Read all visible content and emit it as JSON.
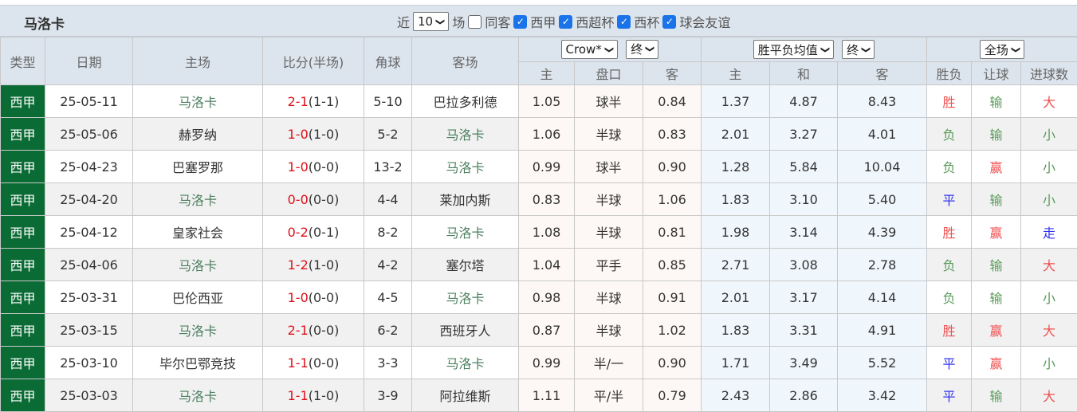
{
  "header": {
    "team": "马洛卡",
    "recent_label": "近",
    "recent_count": "10",
    "matches_label": "场",
    "same_home_label": "同客",
    "filters": [
      "西甲",
      "西超杯",
      "西杯",
      "球会友谊"
    ]
  },
  "columns": {
    "type": "类型",
    "date": "日期",
    "home": "主场",
    "score": "比分(半场)",
    "corners": "角球",
    "away": "客场",
    "handicap_company": "Crow*",
    "handicap_mode": "终",
    "odds_type": "胜平负均值",
    "odds_mode": "终",
    "result_scope": "全场",
    "ah_home": "主",
    "ah_line": "盘口",
    "ah_away": "客",
    "eu_home": "主",
    "eu_draw": "和",
    "eu_away": "客",
    "wdl": "胜负",
    "hcp_result": "让球",
    "goals": "进球数"
  },
  "rows": [
    {
      "league": "西甲",
      "date": "25-05-11",
      "home": "马洛卡",
      "ft": "2-1",
      "ht": "(1-1)",
      "corners": "5-10",
      "away": "巴拉多利德",
      "ah_h": "1.05",
      "line": "球半",
      "ah_a": "0.84",
      "eu_h": "1.37",
      "eu_d": "4.87",
      "eu_a": "8.43",
      "wdl": "胜",
      "hcp": "输",
      "ou": "大",
      "home_is_team": true
    },
    {
      "league": "西甲",
      "date": "25-05-06",
      "home": "赫罗纳",
      "ft": "1-0",
      "ht": "(1-0)",
      "corners": "5-2",
      "away": "马洛卡",
      "ah_h": "1.06",
      "line": "半球",
      "ah_a": "0.83",
      "eu_h": "2.01",
      "eu_d": "3.27",
      "eu_a": "4.01",
      "wdl": "负",
      "hcp": "输",
      "ou": "小",
      "home_is_team": false
    },
    {
      "league": "西甲",
      "date": "25-04-23",
      "home": "巴塞罗那",
      "ft": "1-0",
      "ht": "(0-0)",
      "corners": "13-2",
      "away": "马洛卡",
      "ah_h": "0.99",
      "line": "球半",
      "ah_a": "0.90",
      "eu_h": "1.28",
      "eu_d": "5.84",
      "eu_a": "10.04",
      "wdl": "负",
      "hcp": "赢",
      "ou": "小",
      "home_is_team": false
    },
    {
      "league": "西甲",
      "date": "25-04-20",
      "home": "马洛卡",
      "ft": "0-0",
      "ht": "(0-0)",
      "corners": "4-4",
      "away": "莱加内斯",
      "ah_h": "0.83",
      "line": "半球",
      "ah_a": "1.06",
      "eu_h": "1.83",
      "eu_d": "3.10",
      "eu_a": "5.40",
      "wdl": "平",
      "hcp": "输",
      "ou": "小",
      "home_is_team": true
    },
    {
      "league": "西甲",
      "date": "25-04-12",
      "home": "皇家社会",
      "ft": "0-2",
      "ht": "(0-1)",
      "corners": "8-2",
      "away": "马洛卡",
      "ah_h": "1.08",
      "line": "半球",
      "ah_a": "0.81",
      "eu_h": "1.98",
      "eu_d": "3.14",
      "eu_a": "4.39",
      "wdl": "胜",
      "hcp": "赢",
      "ou": "走",
      "home_is_team": false
    },
    {
      "league": "西甲",
      "date": "25-04-06",
      "home": "马洛卡",
      "ft": "1-2",
      "ht": "(1-0)",
      "corners": "4-2",
      "away": "塞尔塔",
      "ah_h": "1.04",
      "line": "平手",
      "ah_a": "0.85",
      "eu_h": "2.71",
      "eu_d": "3.08",
      "eu_a": "2.78",
      "wdl": "负",
      "hcp": "输",
      "ou": "大",
      "home_is_team": true
    },
    {
      "league": "西甲",
      "date": "25-03-31",
      "home": "巴伦西亚",
      "ft": "1-0",
      "ht": "(0-0)",
      "corners": "4-5",
      "away": "马洛卡",
      "ah_h": "0.98",
      "line": "半球",
      "ah_a": "0.91",
      "eu_h": "2.01",
      "eu_d": "3.17",
      "eu_a": "4.14",
      "wdl": "负",
      "hcp": "输",
      "ou": "小",
      "home_is_team": false
    },
    {
      "league": "西甲",
      "date": "25-03-15",
      "home": "马洛卡",
      "ft": "2-1",
      "ht": "(0-0)",
      "corners": "6-2",
      "away": "西班牙人",
      "ah_h": "0.87",
      "line": "半球",
      "ah_a": "1.02",
      "eu_h": "1.83",
      "eu_d": "3.31",
      "eu_a": "4.91",
      "wdl": "胜",
      "hcp": "赢",
      "ou": "大",
      "home_is_team": true
    },
    {
      "league": "西甲",
      "date": "25-03-10",
      "home": "毕尔巴鄂竞技",
      "ft": "1-1",
      "ht": "(0-0)",
      "corners": "3-3",
      "away": "马洛卡",
      "ah_h": "0.99",
      "line": "半/一",
      "ah_a": "0.90",
      "eu_h": "1.71",
      "eu_d": "3.49",
      "eu_a": "5.52",
      "wdl": "平",
      "hcp": "赢",
      "ou": "小",
      "home_is_team": false
    },
    {
      "league": "西甲",
      "date": "25-03-03",
      "home": "马洛卡",
      "ft": "1-1",
      "ht": "(1-0)",
      "corners": "3-9",
      "away": "阿拉维斯",
      "ah_h": "1.11",
      "line": "平/半",
      "ah_a": "0.79",
      "eu_h": "2.43",
      "eu_d": "2.86",
      "eu_a": "3.42",
      "wdl": "平",
      "hcp": "输",
      "ou": "大",
      "home_is_team": true
    }
  ]
}
